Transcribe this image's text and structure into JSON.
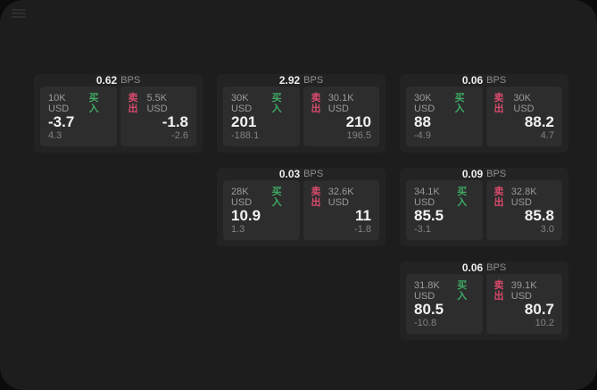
{
  "labels": {
    "bps": "BPS",
    "buy": "买入",
    "sell": "卖出"
  },
  "colors": {
    "background": "#0b0b0b",
    "panel": "#1d1d1d",
    "card": "#232323",
    "tile": "#2d2d2d",
    "buy": "#3eaa64",
    "sell": "#d84a6b",
    "value_text": "#f2f2f2",
    "muted_text": "#8f8f8f"
  },
  "cards": [
    {
      "bps_value": "0.62",
      "buy": {
        "amount": "10K USD",
        "value": "-3.7",
        "change": "4.3"
      },
      "sell": {
        "amount": "5.5K USD",
        "value": "-1.8",
        "change": "-2.6"
      }
    },
    {
      "bps_value": "2.92",
      "buy": {
        "amount": "30K USD",
        "value": "201",
        "change": "-188.1"
      },
      "sell": {
        "amount": "30.1K USD",
        "value": "210",
        "change": "196.5"
      }
    },
    {
      "bps_value": "0.06",
      "buy": {
        "amount": "30K USD",
        "value": "88",
        "change": "-4.9"
      },
      "sell": {
        "amount": "30K USD",
        "value": "88.2",
        "change": "4.7"
      }
    },
    {
      "bps_value": "0.03",
      "buy": {
        "amount": "28K USD",
        "value": "10.9",
        "change": "1.3"
      },
      "sell": {
        "amount": "32.6K USD",
        "value": "11",
        "change": "-1.8"
      }
    },
    {
      "bps_value": "0.09",
      "buy": {
        "amount": "34.1K USD",
        "value": "85.5",
        "change": "-3.1"
      },
      "sell": {
        "amount": "32.8K USD",
        "value": "85.8",
        "change": "3.0"
      }
    },
    {
      "bps_value": "0.06",
      "buy": {
        "amount": "31.8K USD",
        "value": "80.5",
        "change": "-10.8"
      },
      "sell": {
        "amount": "39.1K USD",
        "value": "80.7",
        "change": "10.2"
      }
    }
  ]
}
